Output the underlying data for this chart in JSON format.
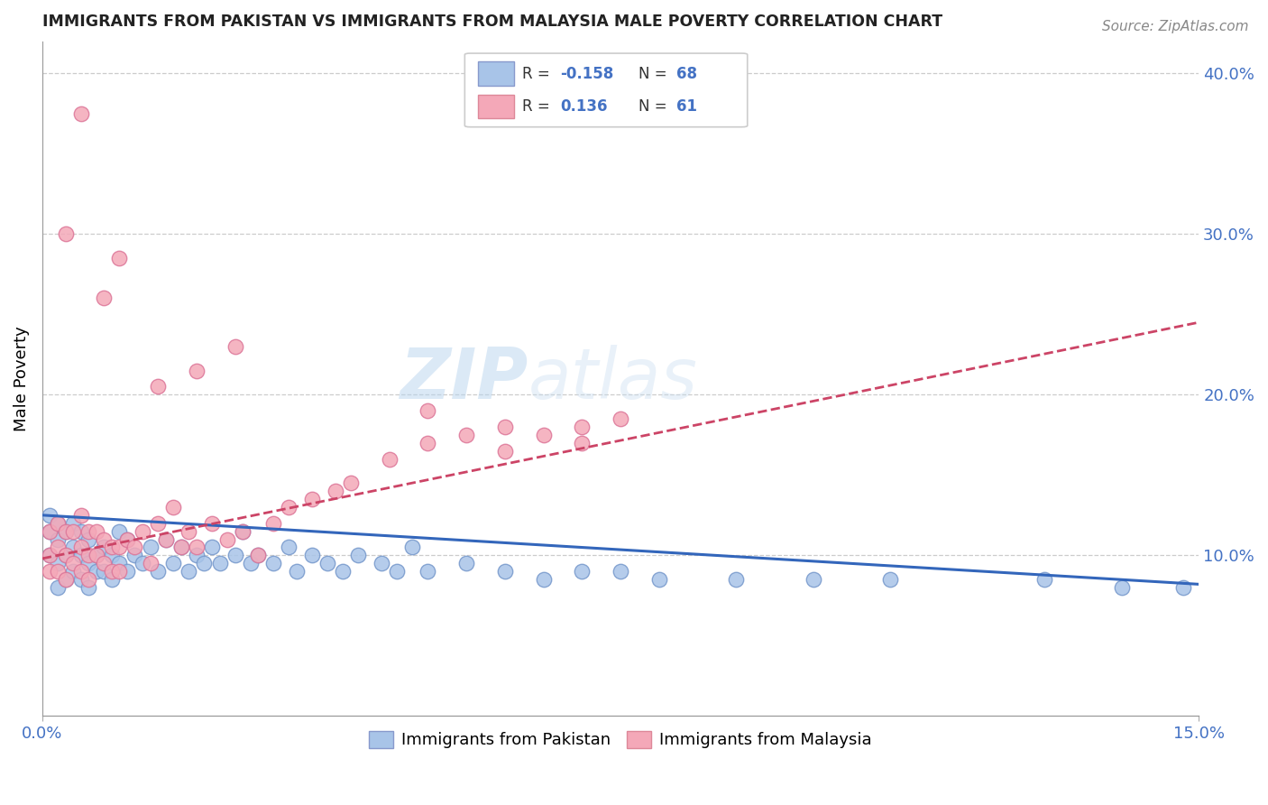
{
  "title": "IMMIGRANTS FROM PAKISTAN VS IMMIGRANTS FROM MALAYSIA MALE POVERTY CORRELATION CHART",
  "source": "Source: ZipAtlas.com",
  "ylabel": "Male Poverty",
  "xlim": [
    0.0,
    0.15
  ],
  "ylim": [
    0.0,
    0.42
  ],
  "right_ytick_vals": [
    0.1,
    0.2,
    0.3,
    0.4
  ],
  "right_ytick_labels": [
    "10.0%",
    "20.0%",
    "30.0%",
    "40.0%"
  ],
  "pakistan_color": "#a8c4e8",
  "malaysia_color": "#f4a8b8",
  "pakistan_line_color": "#3366bb",
  "malaysia_line_color": "#cc4466",
  "watermark_zip": "ZIP",
  "watermark_atlas": "atlas",
  "legend_r1_label": "R = ",
  "legend_r1_val": "-0.158",
  "legend_n1_label": "N = ",
  "legend_n1_val": "68",
  "legend_r2_label": "R =  ",
  "legend_r2_val": "0.136",
  "legend_n2_label": "N = ",
  "legend_n2_val": "61",
  "bottom_label1": "Immigrants from Pakistan",
  "bottom_label2": "Immigrants from Malaysia",
  "pak_line_x0": 0.0,
  "pak_line_x1": 0.15,
  "pak_line_y0": 0.125,
  "pak_line_y1": 0.082,
  "mal_line_x0": 0.0,
  "mal_line_x1": 0.15,
  "mal_line_y0": 0.098,
  "mal_line_y1": 0.245,
  "pak_x": [
    0.001,
    0.001,
    0.001,
    0.002,
    0.002,
    0.002,
    0.002,
    0.003,
    0.003,
    0.003,
    0.004,
    0.004,
    0.004,
    0.005,
    0.005,
    0.005,
    0.006,
    0.006,
    0.006,
    0.007,
    0.007,
    0.008,
    0.008,
    0.009,
    0.009,
    0.01,
    0.01,
    0.011,
    0.011,
    0.012,
    0.013,
    0.014,
    0.015,
    0.016,
    0.017,
    0.018,
    0.019,
    0.02,
    0.021,
    0.022,
    0.023,
    0.025,
    0.026,
    0.027,
    0.028,
    0.03,
    0.032,
    0.033,
    0.035,
    0.037,
    0.039,
    0.041,
    0.044,
    0.046,
    0.048,
    0.05,
    0.055,
    0.06,
    0.065,
    0.07,
    0.075,
    0.08,
    0.09,
    0.1,
    0.11,
    0.13,
    0.14,
    0.148
  ],
  "pak_y": [
    0.125,
    0.115,
    0.1,
    0.12,
    0.11,
    0.095,
    0.08,
    0.115,
    0.1,
    0.085,
    0.12,
    0.105,
    0.09,
    0.115,
    0.1,
    0.085,
    0.11,
    0.095,
    0.08,
    0.1,
    0.09,
    0.105,
    0.09,
    0.1,
    0.085,
    0.115,
    0.095,
    0.11,
    0.09,
    0.1,
    0.095,
    0.105,
    0.09,
    0.11,
    0.095,
    0.105,
    0.09,
    0.1,
    0.095,
    0.105,
    0.095,
    0.1,
    0.115,
    0.095,
    0.1,
    0.095,
    0.105,
    0.09,
    0.1,
    0.095,
    0.09,
    0.1,
    0.095,
    0.09,
    0.105,
    0.09,
    0.095,
    0.09,
    0.085,
    0.09,
    0.09,
    0.085,
    0.085,
    0.085,
    0.085,
    0.085,
    0.08,
    0.08
  ],
  "mal_x": [
    0.001,
    0.001,
    0.001,
    0.002,
    0.002,
    0.002,
    0.003,
    0.003,
    0.003,
    0.004,
    0.004,
    0.005,
    0.005,
    0.005,
    0.006,
    0.006,
    0.006,
    0.007,
    0.007,
    0.008,
    0.008,
    0.009,
    0.009,
    0.01,
    0.01,
    0.011,
    0.012,
    0.013,
    0.014,
    0.015,
    0.016,
    0.017,
    0.018,
    0.019,
    0.02,
    0.022,
    0.024,
    0.026,
    0.028,
    0.03,
    0.032,
    0.035,
    0.038,
    0.04,
    0.045,
    0.05,
    0.055,
    0.06,
    0.065,
    0.07,
    0.075,
    0.05,
    0.06,
    0.07,
    0.015,
    0.02,
    0.025,
    0.01,
    0.005,
    0.008,
    0.003
  ],
  "mal_y": [
    0.115,
    0.1,
    0.09,
    0.12,
    0.105,
    0.09,
    0.115,
    0.1,
    0.085,
    0.115,
    0.095,
    0.125,
    0.105,
    0.09,
    0.115,
    0.1,
    0.085,
    0.115,
    0.1,
    0.11,
    0.095,
    0.105,
    0.09,
    0.105,
    0.09,
    0.11,
    0.105,
    0.115,
    0.095,
    0.12,
    0.11,
    0.13,
    0.105,
    0.115,
    0.105,
    0.12,
    0.11,
    0.115,
    0.1,
    0.12,
    0.13,
    0.135,
    0.14,
    0.145,
    0.16,
    0.17,
    0.175,
    0.165,
    0.175,
    0.18,
    0.185,
    0.19,
    0.18,
    0.17,
    0.205,
    0.215,
    0.23,
    0.285,
    0.375,
    0.26,
    0.3
  ]
}
